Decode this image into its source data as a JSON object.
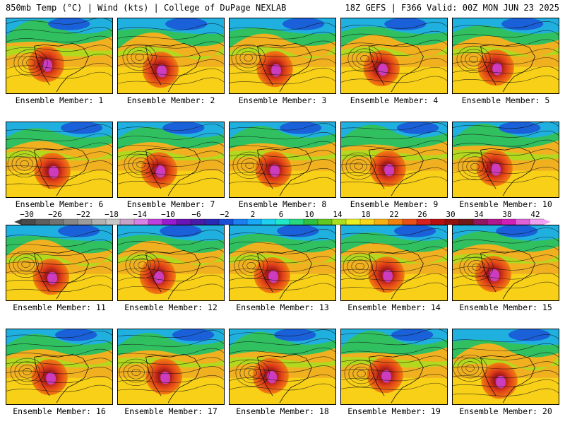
{
  "header": {
    "left": "850mb Temp (°C) | Wind (kts) | College of DuPage NEXLAB",
    "right": "18Z GEFS | F366 Valid: 00Z MON JUN 23 2025"
  },
  "members": [
    {
      "label": "Ensemble Member: 1"
    },
    {
      "label": "Ensemble Member: 2"
    },
    {
      "label": "Ensemble Member: 3"
    },
    {
      "label": "Ensemble Member: 4"
    },
    {
      "label": "Ensemble Member: 5"
    },
    {
      "label": "Ensemble Member: 6"
    },
    {
      "label": "Ensemble Member: 7"
    },
    {
      "label": "Ensemble Member: 8"
    },
    {
      "label": "Ensemble Member: 9"
    },
    {
      "label": "Ensemble Member: 10"
    },
    {
      "label": "Ensemble Member: 11"
    },
    {
      "label": "Ensemble Member: 12"
    },
    {
      "label": "Ensemble Member: 13"
    },
    {
      "label": "Ensemble Member: 14"
    },
    {
      "label": "Ensemble Member: 15"
    },
    {
      "label": "Ensemble Member: 16"
    },
    {
      "label": "Ensemble Member: 17"
    },
    {
      "label": "Ensemble Member: 18"
    },
    {
      "label": "Ensemble Member: 19"
    },
    {
      "label": "Ensemble Member: 20"
    }
  ],
  "colorbar": {
    "ticks": [
      "-30",
      "-26",
      "-22",
      "-18",
      "-14",
      "-10",
      "-6",
      "-2",
      "2",
      "6",
      "10",
      "14",
      "18",
      "22",
      "26",
      "30",
      "34",
      "38",
      "42"
    ],
    "colors": [
      "#4a4a4a",
      "#5e5e5e",
      "#727272",
      "#888888",
      "#9c9c9c",
      "#b2b2b2",
      "#c6c6c6",
      "#c8a2c8",
      "#d982e6",
      "#c040e0",
      "#9a1ad0",
      "#6a14b8",
      "#4a1aa8",
      "#2a2ab8",
      "#1a50d8",
      "#1a80f0",
      "#18a8f8",
      "#20d0f0",
      "#20e8c8",
      "#28d880",
      "#30c040",
      "#60c820",
      "#a8e020",
      "#e8f020",
      "#f8d818",
      "#f8b010",
      "#f08010",
      "#e85018",
      "#d82020",
      "#b81010",
      "#901010",
      "#701818",
      "#901860",
      "#b01890",
      "#d020b8",
      "#e060d8",
      "#f0a0f0"
    ]
  }
}
